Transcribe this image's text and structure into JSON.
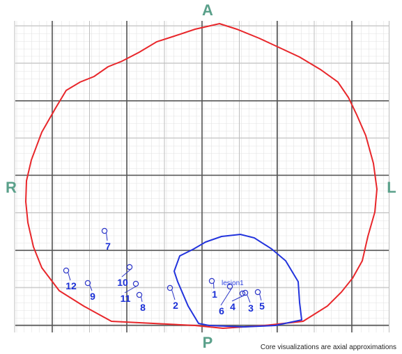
{
  "orientation": {
    "anterior": "A",
    "posterior": "P",
    "right": "R",
    "left": "L"
  },
  "outline_color": "#e8262a",
  "lesion_color": "#2233dd",
  "grid_color": "#bdbdbd",
  "lesion": {
    "label": "lesion1"
  },
  "cores": [
    {
      "label": "1"
    },
    {
      "label": "2"
    },
    {
      "label": "3"
    },
    {
      "label": "4"
    },
    {
      "label": "5"
    },
    {
      "label": "6"
    },
    {
      "label": "7"
    },
    {
      "label": "8"
    },
    {
      "label": "9"
    },
    {
      "label": "10"
    },
    {
      "label": "11"
    },
    {
      "label": "12"
    }
  ],
  "footnote": "Core visualizations are axial approximations"
}
